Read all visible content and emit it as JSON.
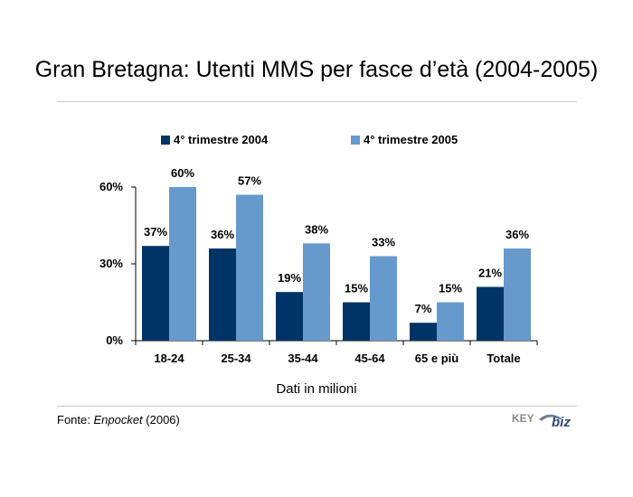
{
  "title": "Gran Bretagna: Utenti MMS per fasce d’età (2004-2005)",
  "caption": "Dati in milioni",
  "source": {
    "prefix": "Fonte: ",
    "name": "Enpocket",
    "suffix": " (2006)"
  },
  "logo": {
    "text_key": "KEY",
    "text_biz": "biz"
  },
  "colors": {
    "series1": "#003366",
    "series2": "#6699CC"
  },
  "chart_data": {
    "type": "bar",
    "categories": [
      "18-24",
      "25-34",
      "35-44",
      "45-64",
      "65 e più",
      "Totale"
    ],
    "series": [
      {
        "name": "4° trimestre 2004",
        "values": [
          37,
          36,
          19,
          15,
          7,
          21
        ]
      },
      {
        "name": "4° trimestre 2005",
        "values": [
          60,
          57,
          38,
          33,
          15,
          36
        ]
      }
    ],
    "yticks": [
      "0%",
      "30%",
      "60%"
    ],
    "ytick_values": [
      0,
      30,
      60
    ],
    "ylim": [
      0,
      60
    ],
    "value_suffix": "%",
    "grid": false,
    "legend_position": "top"
  }
}
